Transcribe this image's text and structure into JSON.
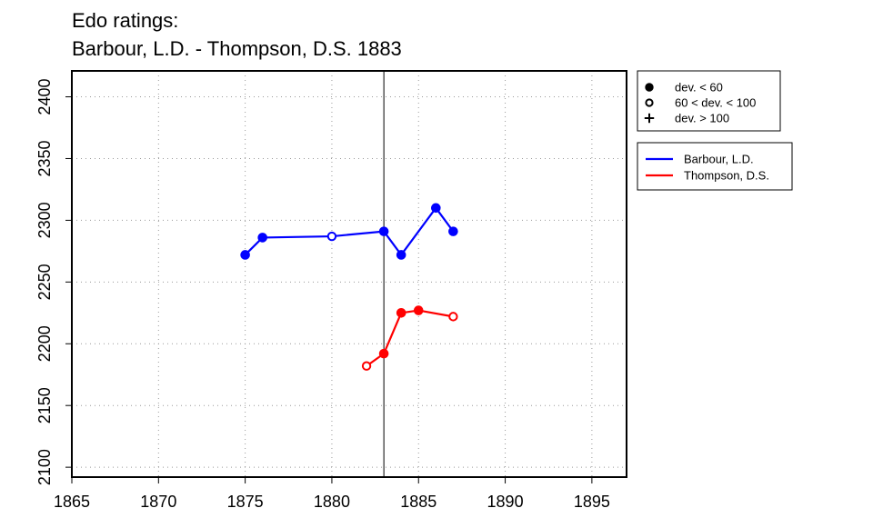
{
  "chart_data": {
    "type": "line",
    "title": "Edo ratings:",
    "subtitle": "Barbour, L.D. - Thompson, D.S. 1883",
    "xlabel": "",
    "ylabel": "",
    "xlim": [
      1865,
      1897
    ],
    "ylim": [
      2092,
      2421
    ],
    "x_ticks": [
      1865,
      1870,
      1875,
      1880,
      1885,
      1890,
      1895
    ],
    "y_ticks": [
      2100,
      2150,
      2200,
      2250,
      2300,
      2350,
      2400
    ],
    "grid": true,
    "marker_line_year": 1883,
    "point_legend": {
      "placement": "top-right, outside plot",
      "entries": [
        {
          "marker": "filled-circle",
          "label": "dev. < 60"
        },
        {
          "marker": "open-circle",
          "label": "60 < dev. < 100"
        },
        {
          "marker": "plus",
          "label": "dev. > 100"
        }
      ]
    },
    "series_legend": {
      "placement": "right, outside plot",
      "entries": [
        {
          "name": "Barbour, L.D.",
          "color": "#0000ff"
        },
        {
          "name": "Thompson, D.S.",
          "color": "#ff0000"
        }
      ]
    },
    "series": [
      {
        "name": "Barbour, L.D.",
        "color": "#0000ff",
        "points": [
          {
            "x": 1875,
            "y": 2272,
            "marker": "filled-circle"
          },
          {
            "x": 1876,
            "y": 2286,
            "marker": "filled-circle"
          },
          {
            "x": 1880,
            "y": 2287,
            "marker": "open-circle"
          },
          {
            "x": 1883,
            "y": 2291,
            "marker": "filled-circle"
          },
          {
            "x": 1884,
            "y": 2272,
            "marker": "filled-circle"
          },
          {
            "x": 1886,
            "y": 2310,
            "marker": "filled-circle"
          },
          {
            "x": 1887,
            "y": 2291,
            "marker": "filled-circle"
          }
        ]
      },
      {
        "name": "Thompson, D.S.",
        "color": "#ff0000",
        "points": [
          {
            "x": 1882,
            "y": 2182,
            "marker": "open-circle"
          },
          {
            "x": 1883,
            "y": 2192,
            "marker": "filled-circle"
          },
          {
            "x": 1884,
            "y": 2225,
            "marker": "filled-circle"
          },
          {
            "x": 1885,
            "y": 2227,
            "marker": "filled-circle"
          },
          {
            "x": 1887,
            "y": 2222,
            "marker": "open-circle"
          }
        ]
      }
    ]
  }
}
